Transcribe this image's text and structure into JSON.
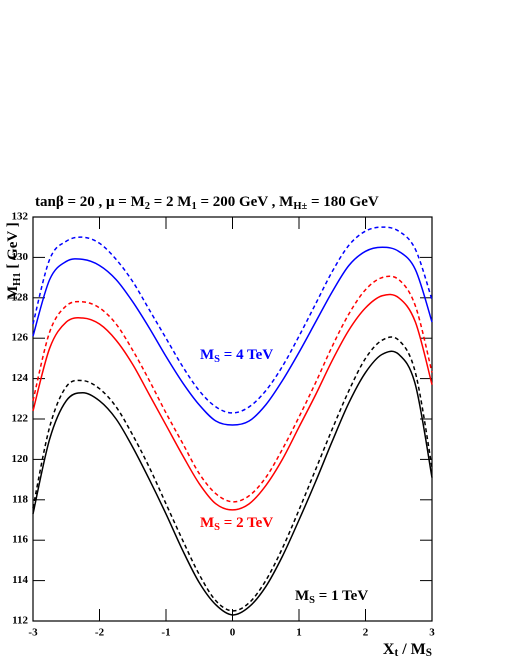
{
  "chart_data": {
    "type": "line",
    "title": [
      {
        "text": "tanβ = 20 ,  μ = M"
      },
      {
        "text": "2",
        "sub": true
      },
      {
        "text": " = 2 M"
      },
      {
        "text": "1",
        "sub": true
      },
      {
        "text": " = 200 GeV , M"
      },
      {
        "text": "H±",
        "sub": true
      },
      {
        "text": " = 180 GeV"
      }
    ],
    "x_label": [
      {
        "text": "X"
      },
      {
        "text": "t",
        "sub": true
      },
      {
        "text": " / M"
      },
      {
        "text": "S",
        "sub": true
      }
    ],
    "y_label": [
      {
        "text": "M"
      },
      {
        "text": "H1",
        "sub": true
      },
      {
        "text": " [ GeV ]"
      }
    ],
    "x": [
      -3,
      -2.75,
      -2.5,
      -2.25,
      -2,
      -1.75,
      -1.5,
      -1.25,
      -1,
      -0.75,
      -0.5,
      -0.25,
      0,
      0.25,
      0.5,
      0.75,
      1,
      1.25,
      1.5,
      1.75,
      2,
      2.25,
      2.5,
      2.75,
      3
    ],
    "series": [
      {
        "color": "#000000",
        "dashed": false,
        "values": [
          117.3,
          121,
          122.9,
          123.3,
          122.9,
          122,
          120.6,
          119,
          117.3,
          115.5,
          113.9,
          112.8,
          112.3,
          112.7,
          113.7,
          115.2,
          117,
          118.9,
          120.9,
          122.8,
          124.3,
          125.2,
          125.2,
          123.7,
          119.1
        ]
      },
      {
        "color": "#000000",
        "dashed": true,
        "values": [
          117.6,
          121.6,
          123.6,
          123.9,
          123.5,
          122.6,
          121.2,
          119.6,
          117.8,
          116,
          114.3,
          113,
          112.5,
          112.9,
          114,
          115.6,
          117.5,
          119.5,
          121.5,
          123.4,
          125,
          125.9,
          125.9,
          124.3,
          119.6
        ]
      },
      {
        "color": "#ff0000",
        "dashed": false,
        "values": [
          122.4,
          125.5,
          126.8,
          127,
          126.7,
          125.9,
          124.7,
          123.2,
          121.7,
          120.2,
          118.8,
          117.8,
          117.5,
          117.8,
          118.7,
          120,
          121.6,
          123.2,
          124.9,
          126.4,
          127.5,
          128.1,
          128,
          126.8,
          123.7
        ]
      },
      {
        "color": "#ff0000",
        "dashed": true,
        "values": [
          122.9,
          126.3,
          127.6,
          127.8,
          127.5,
          126.7,
          125.4,
          123.9,
          122.3,
          120.8,
          119.3,
          118.3,
          117.9,
          118.2,
          119.1,
          120.5,
          122.1,
          123.8,
          125.6,
          127.2,
          128.4,
          129,
          128.9,
          127.6,
          124.3
        ]
      },
      {
        "color": "#0000ff",
        "dashed": false,
        "values": [
          126.1,
          128.9,
          129.8,
          129.9,
          129.6,
          128.9,
          127.8,
          126.5,
          125.1,
          123.8,
          122.7,
          121.9,
          121.7,
          121.9,
          122.7,
          123.9,
          125.3,
          126.8,
          128.3,
          129.6,
          130.3,
          130.5,
          130.3,
          129.4,
          126.8
        ]
      },
      {
        "color": "#0000ff",
        "dashed": true,
        "values": [
          126.7,
          129.9,
          130.8,
          131,
          130.7,
          129.9,
          128.8,
          127.4,
          126,
          124.6,
          123.4,
          122.6,
          122.3,
          122.6,
          123.4,
          124.6,
          126.1,
          127.7,
          129.3,
          130.6,
          131.3,
          131.5,
          131.3,
          130.4,
          127.9
        ]
      }
    ],
    "annotations": [
      {
        "color": "#0000ff",
        "parts": [
          {
            "text": "M"
          },
          {
            "text": "S",
            "sub": true
          },
          {
            "text": " = 4 TeV"
          }
        ]
      },
      {
        "color": "#ff0000",
        "parts": [
          {
            "text": "M"
          },
          {
            "text": "S",
            "sub": true
          },
          {
            "text": " = 2 TeV"
          }
        ]
      },
      {
        "color": "#000000",
        "parts": [
          {
            "text": "M"
          },
          {
            "text": "S",
            "sub": true
          },
          {
            "text": " = 1 TeV"
          }
        ]
      }
    ],
    "xlim": [
      -3,
      3
    ],
    "ylim": [
      112,
      132
    ],
    "xticks": [
      -3,
      -2,
      -1,
      0,
      1,
      2,
      3
    ],
    "yticks": [
      112,
      114,
      116,
      118,
      120,
      122,
      124,
      126,
      128,
      130,
      132
    ]
  }
}
